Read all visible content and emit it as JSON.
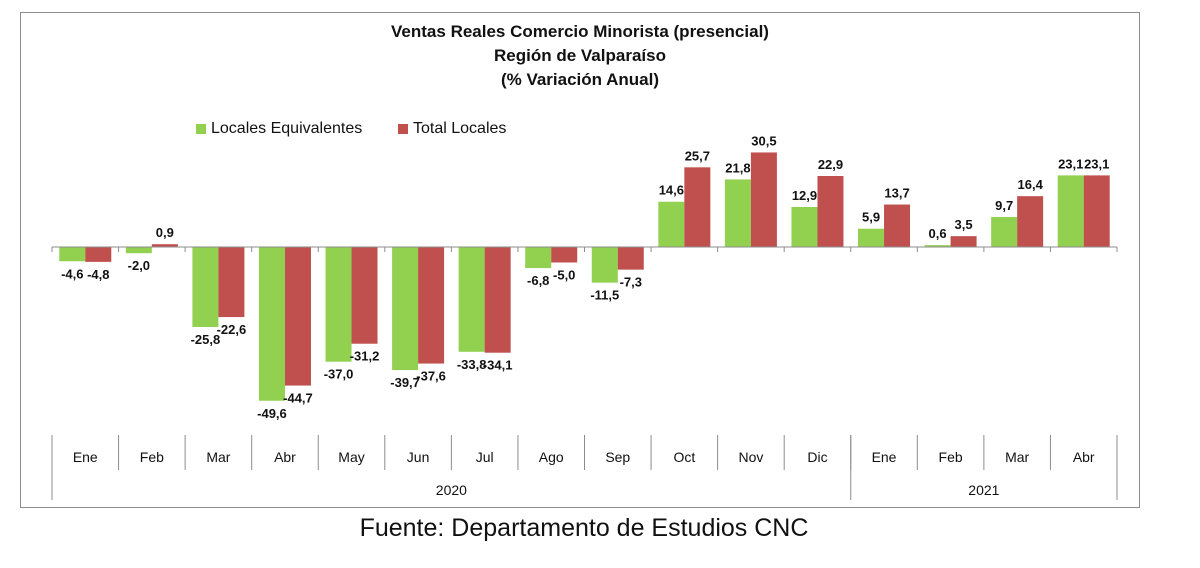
{
  "chart_data": {
    "type": "bar",
    "title": [
      "Ventas Reales Comercio Minorista (presencial)",
      "Región de Valparaíso",
      "(% Variación Anual)"
    ],
    "categories": [
      "Ene",
      "Feb",
      "Mar",
      "Abr",
      "May",
      "Jun",
      "Jul",
      "Ago",
      "Sep",
      "Oct",
      "Nov",
      "Dic",
      "Ene",
      "Feb",
      "Mar",
      "Abr"
    ],
    "category_groups": [
      {
        "label": "2020",
        "count": 12
      },
      {
        "label": "2021",
        "count": 4
      }
    ],
    "series": [
      {
        "name": "Locales Equivalentes",
        "color": "#92d050",
        "values": [
          -4.6,
          -2.0,
          -25.8,
          -49.6,
          -37.0,
          -39.7,
          -33.8,
          -6.8,
          -11.5,
          14.6,
          21.8,
          12.9,
          5.9,
          0.6,
          9.7,
          23.1
        ],
        "labels": [
          "-4,6",
          "-2,0",
          "-25,8",
          "-49,6",
          "-37,0",
          "-39,7",
          "-33,8",
          "-6,8",
          "-11,5",
          "14,6",
          "21,8",
          "12,9",
          "5,9",
          "0,6",
          "9,7",
          "23,1"
        ]
      },
      {
        "name": "Total Locales",
        "color": "#c0504d",
        "values": [
          -4.8,
          0.9,
          -22.6,
          -44.7,
          -31.2,
          -37.6,
          -34.1,
          -5.0,
          -7.3,
          25.7,
          30.5,
          22.9,
          13.7,
          3.5,
          16.4,
          23.1
        ],
        "labels": [
          "-4,8",
          "0,9",
          "-22,6",
          "-44,7",
          "-31,2",
          "-37,6",
          "-34,1",
          "-5,0",
          "-7,3",
          "25,7",
          "30,5",
          "22,9",
          "13,7",
          "3,5",
          "16,4",
          "23,1"
        ]
      }
    ],
    "legend_position": "top-left",
    "grid": false
  },
  "source": "Fuente: Departamento de Estudios CNC"
}
